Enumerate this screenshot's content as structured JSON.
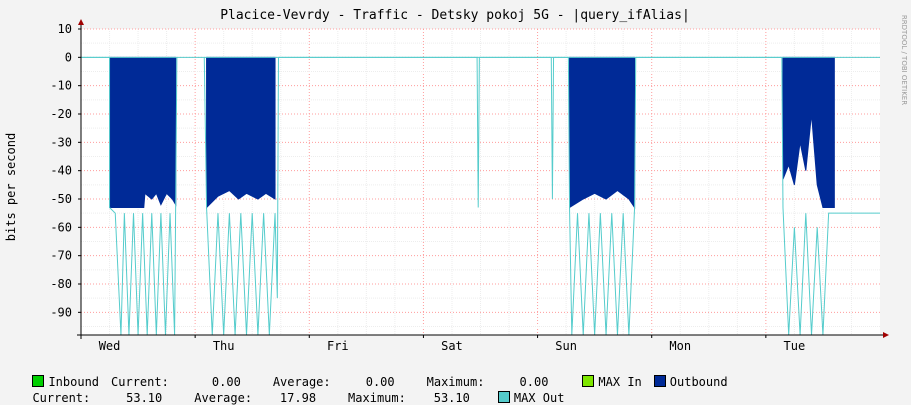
{
  "chart_data": {
    "type": "area",
    "title": "Placice-Vevrdy - Traffic - Detsky pokoj 5G - |query_ifAlias|",
    "ylabel": "bits per second",
    "side_label": "RRDTOOL / TOBI OETIKER",
    "ylim": [
      -98,
      10
    ],
    "yticks": [
      10,
      0,
      -10,
      -20,
      -30,
      -40,
      -50,
      -60,
      -70,
      -80,
      -90
    ],
    "categories": [
      "Wed",
      "Thu",
      "Fri",
      "Sat",
      "Sun",
      "Mon",
      "Tue"
    ],
    "x_range": [
      0,
      7.0
    ],
    "grid": true,
    "series": [
      {
        "name": "Outbound",
        "color": "#002a97",
        "segments": [
          [
            [
              0.25,
              0
            ],
            [
              0.25,
              -53
            ],
            [
              0.55,
              -53
            ],
            [
              0.56,
              -48
            ],
            [
              0.62,
              -50
            ],
            [
              0.66,
              -48
            ],
            [
              0.7,
              -52
            ],
            [
              0.75,
              -48
            ],
            [
              0.8,
              -50
            ],
            [
              0.83,
              -52
            ],
            [
              0.83,
              0
            ]
          ],
          [
            [
              1.1,
              0
            ],
            [
              1.1,
              -53
            ],
            [
              1.2,
              -49
            ],
            [
              1.3,
              -47
            ],
            [
              1.38,
              -50
            ],
            [
              1.45,
              -48
            ],
            [
              1.55,
              -50
            ],
            [
              1.62,
              -48
            ],
            [
              1.7,
              -50
            ],
            [
              1.7,
              0
            ]
          ],
          [
            [
              4.28,
              0
            ],
            [
              4.28,
              -53
            ],
            [
              4.4,
              -50
            ],
            [
              4.5,
              -48
            ],
            [
              4.6,
              -50
            ],
            [
              4.7,
              -47
            ],
            [
              4.8,
              -50
            ],
            [
              4.85,
              -53
            ],
            [
              4.85,
              0
            ]
          ],
          [
            [
              6.15,
              0
            ],
            [
              6.15,
              -43
            ],
            [
              6.2,
              -38
            ],
            [
              6.25,
              -45
            ],
            [
              6.3,
              -30
            ],
            [
              6.35,
              -40
            ],
            [
              6.4,
              -20
            ],
            [
              6.45,
              -45
            ],
            [
              6.5,
              -53
            ],
            [
              6.6,
              -53
            ],
            [
              6.6,
              0
            ]
          ]
        ]
      },
      {
        "name": "MAX Out",
        "color": "#55cccc",
        "segments": [
          [
            [
              0,
              0
            ],
            [
              0.25,
              0
            ],
            [
              0.25,
              -53
            ],
            [
              0.3,
              -55
            ],
            [
              0.35,
              -98
            ],
            [
              0.38,
              -55
            ],
            [
              0.42,
              -98
            ],
            [
              0.46,
              -55
            ],
            [
              0.5,
              -98
            ],
            [
              0.54,
              -55
            ],
            [
              0.58,
              -98
            ],
            [
              0.62,
              -55
            ],
            [
              0.66,
              -98
            ],
            [
              0.7,
              -55
            ],
            [
              0.74,
              -98
            ],
            [
              0.78,
              -55
            ],
            [
              0.82,
              -98
            ],
            [
              0.84,
              0
            ]
          ],
          [
            [
              1.08,
              0
            ],
            [
              1.1,
              -53
            ],
            [
              1.15,
              -98
            ],
            [
              1.2,
              -55
            ],
            [
              1.25,
              -98
            ],
            [
              1.3,
              -55
            ],
            [
              1.35,
              -98
            ],
            [
              1.4,
              -55
            ],
            [
              1.45,
              -98
            ],
            [
              1.5,
              -55
            ],
            [
              1.55,
              -98
            ],
            [
              1.6,
              -55
            ],
            [
              1.65,
              -98
            ],
            [
              1.7,
              -55
            ],
            [
              1.72,
              -85
            ],
            [
              1.73,
              0
            ]
          ],
          [
            [
              1.73,
              0
            ],
            [
              3.47,
              0
            ],
            [
              3.48,
              -53
            ],
            [
              3.49,
              0
            ],
            [
              4.12,
              0
            ],
            [
              4.13,
              -50
            ],
            [
              4.14,
              0
            ],
            [
              4.27,
              0
            ],
            [
              4.28,
              -53
            ],
            [
              4.3,
              -98
            ],
            [
              4.35,
              -55
            ],
            [
              4.4,
              -98
            ],
            [
              4.45,
              -55
            ],
            [
              4.5,
              -98
            ],
            [
              4.55,
              -55
            ],
            [
              4.6,
              -98
            ],
            [
              4.65,
              -55
            ],
            [
              4.7,
              -98
            ],
            [
              4.75,
              -55
            ],
            [
              4.8,
              -98
            ],
            [
              4.85,
              -53
            ],
            [
              4.86,
              0
            ]
          ],
          [
            [
              4.86,
              0
            ],
            [
              6.14,
              0
            ],
            [
              6.15,
              -53
            ],
            [
              6.2,
              -98
            ],
            [
              6.25,
              -60
            ],
            [
              6.3,
              -98
            ],
            [
              6.35,
              -55
            ],
            [
              6.4,
              -98
            ],
            [
              6.45,
              -60
            ],
            [
              6.5,
              -98
            ],
            [
              6.55,
              -55
            ],
            [
              6.6,
              -55
            ],
            [
              7.0,
              -55
            ]
          ]
        ]
      },
      {
        "name": "Inbound",
        "color": "#00cf00",
        "segments": []
      },
      {
        "name": "MAX In",
        "color": "#7ee600",
        "segments": []
      }
    ]
  },
  "legend": {
    "inbound": {
      "label": "Inbound",
      "color": "#00cf00",
      "current_label": "Current:",
      "current": "0.00",
      "average_label": "Average:",
      "average": "0.00",
      "maximum_label": "Maximum:",
      "maximum": "0.00"
    },
    "max_in": {
      "label": "MAX In",
      "color": "#7ee600"
    },
    "outbound": {
      "label": "Outbound",
      "color": "#002a97",
      "current_label": "Current:",
      "current": "53.10",
      "average_label": "Average:",
      "average": "17.98",
      "maximum_label": "Maximum:",
      "maximum": "53.10"
    },
    "max_out": {
      "label": "MAX Out",
      "color": "#55cccc"
    }
  }
}
